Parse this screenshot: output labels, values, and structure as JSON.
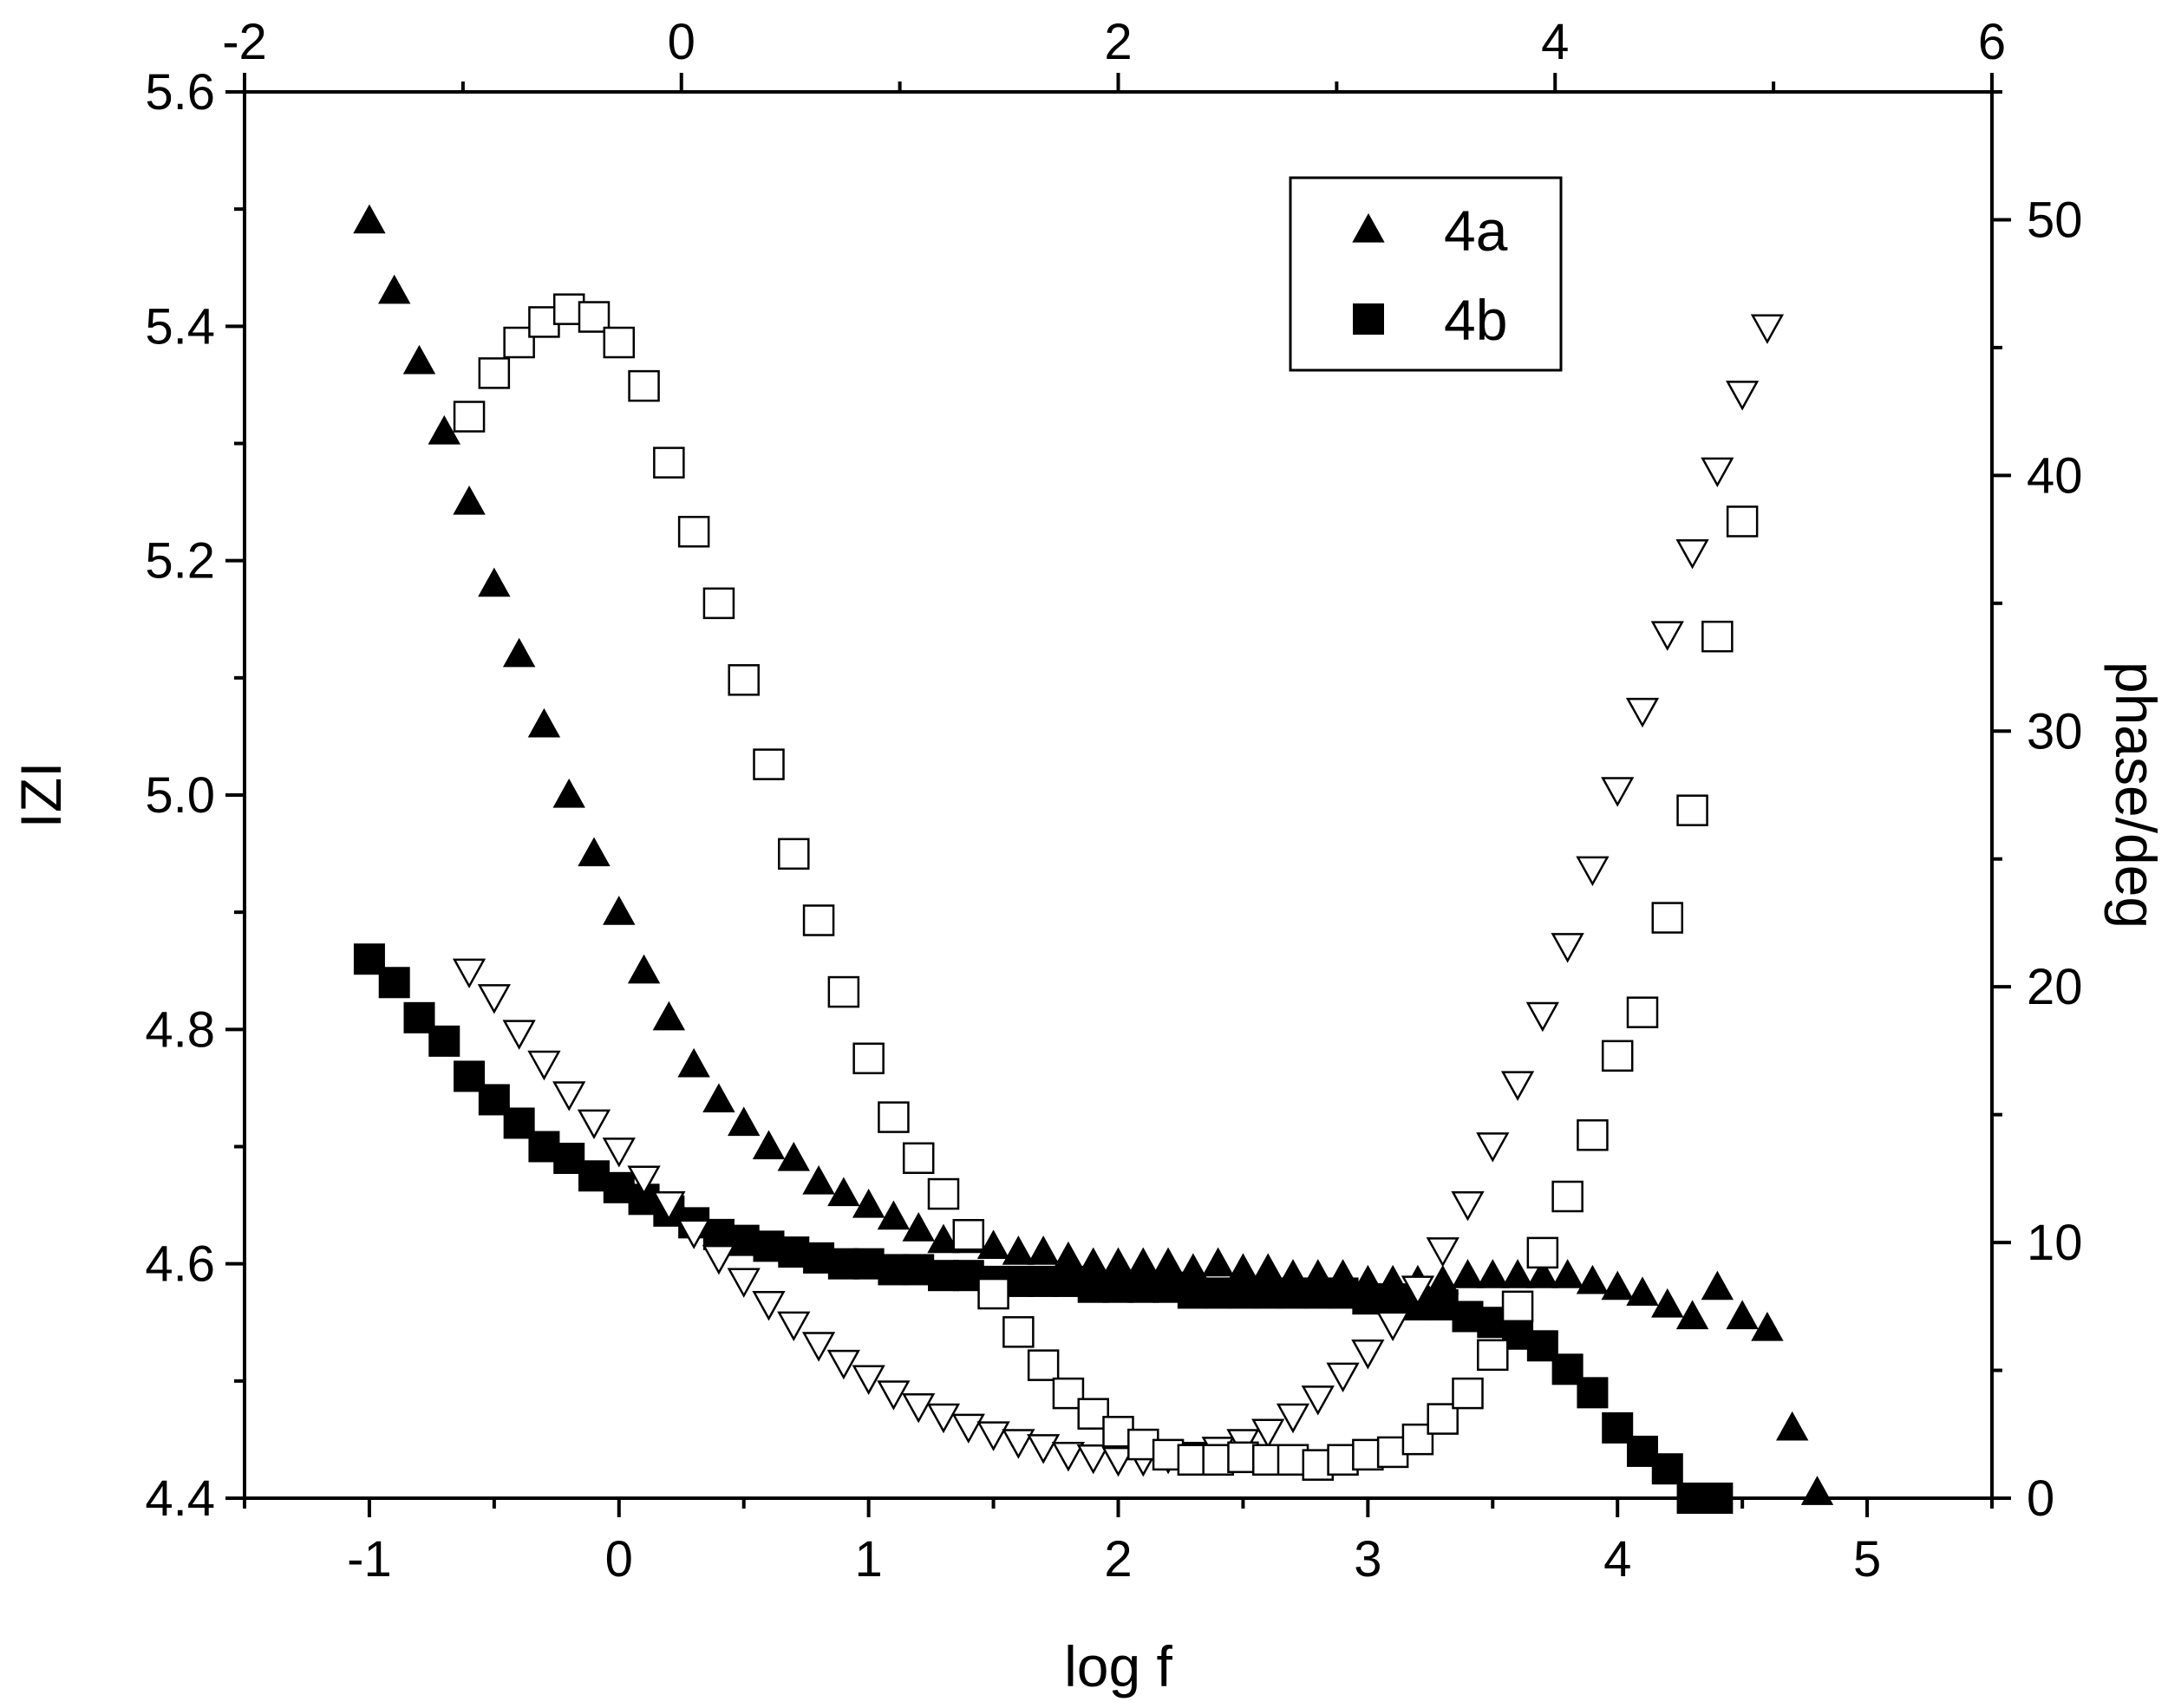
{
  "chart_data": {
    "type": "scatter",
    "title": "",
    "xlabel": "log f",
    "ylabel": "IZI",
    "y2label": "phase/deg",
    "xlim": [
      -1.5,
      5.5
    ],
    "ylim": [
      4.4,
      5.6
    ],
    "x2lim": [
      -2,
      6
    ],
    "y2lim": [
      0,
      55
    ],
    "x_ticks": [
      "-1",
      "0",
      "1",
      "2",
      "3",
      "4",
      "5"
    ],
    "y_ticks": [
      "4.4",
      "4.6",
      "4.8",
      "5.0",
      "5.2",
      "5.4",
      "5.6"
    ],
    "x2_ticks": [
      "-2",
      "0",
      "2",
      "4",
      "6"
    ],
    "y2_ticks": [
      "0",
      "10",
      "20",
      "30",
      "40",
      "50"
    ],
    "grid": false,
    "legend": {
      "position": "top-right",
      "entries": [
        {
          "label": "4a",
          "marker": "triangle-up-filled"
        },
        {
          "label": "4b",
          "marker": "square-filled"
        }
      ]
    },
    "series": [
      {
        "name": "4a",
        "axis": "left",
        "marker": "triangle-up-filled",
        "x": [
          -1.0,
          -0.9,
          -0.8,
          -0.7,
          -0.6,
          -0.5,
          -0.4,
          -0.3,
          -0.2,
          -0.1,
          0.0,
          0.1,
          0.2,
          0.3,
          0.4,
          0.5,
          0.6,
          0.7,
          0.8,
          0.9,
          1.0,
          1.1,
          1.2,
          1.3,
          1.4,
          1.5,
          1.6,
          1.7,
          1.8,
          1.9,
          2.0,
          2.1,
          2.2,
          2.3,
          2.4,
          2.5,
          2.6,
          2.7,
          2.8,
          2.9,
          3.0,
          3.1,
          3.2,
          3.3,
          3.4,
          3.5,
          3.6,
          3.7,
          3.8,
          3.9,
          4.0,
          4.1,
          4.2,
          4.3,
          4.4,
          4.5,
          4.6,
          4.7,
          4.8
        ],
        "y": [
          5.49,
          5.43,
          5.37,
          5.31,
          5.25,
          5.18,
          5.12,
          5.06,
          5.0,
          4.95,
          4.9,
          4.85,
          4.81,
          4.77,
          4.74,
          4.72,
          4.7,
          4.69,
          4.67,
          4.66,
          4.65,
          4.64,
          4.63,
          4.62,
          4.62,
          4.615,
          4.61,
          4.61,
          4.605,
          4.6,
          4.6,
          4.6,
          4.6,
          4.595,
          4.6,
          4.595,
          4.595,
          4.59,
          4.59,
          4.59,
          4.585,
          4.585,
          4.585,
          4.585,
          4.59,
          4.59,
          4.59,
          4.59,
          4.59,
          4.585,
          4.58,
          4.575,
          4.565,
          4.555,
          4.58,
          4.555,
          4.545,
          4.46,
          4.405
        ]
      },
      {
        "name": "4b",
        "axis": "left",
        "marker": "square-filled",
        "x": [
          -1.0,
          -0.9,
          -0.8,
          -0.7,
          -0.6,
          -0.5,
          -0.4,
          -0.3,
          -0.2,
          -0.1,
          0.0,
          0.1,
          0.2,
          0.3,
          0.4,
          0.5,
          0.6,
          0.7,
          0.8,
          0.9,
          1.0,
          1.1,
          1.2,
          1.3,
          1.4,
          1.5,
          1.6,
          1.7,
          1.8,
          1.9,
          2.0,
          2.1,
          2.2,
          2.3,
          2.4,
          2.5,
          2.6,
          2.7,
          2.8,
          2.9,
          3.0,
          3.1,
          3.2,
          3.3,
          3.4,
          3.5,
          3.6,
          3.7,
          3.8,
          3.9,
          4.0,
          4.1,
          4.2,
          4.3,
          4.4
        ],
        "y": [
          4.86,
          4.84,
          4.81,
          4.79,
          4.76,
          4.74,
          4.72,
          4.7,
          4.69,
          4.675,
          4.665,
          4.655,
          4.645,
          4.635,
          4.625,
          4.62,
          4.615,
          4.61,
          4.605,
          4.6,
          4.6,
          4.595,
          4.595,
          4.59,
          4.59,
          4.585,
          4.585,
          4.585,
          4.585,
          4.58,
          4.58,
          4.58,
          4.58,
          4.575,
          4.575,
          4.575,
          4.575,
          4.575,
          4.575,
          4.575,
          4.57,
          4.57,
          4.565,
          4.565,
          4.555,
          4.55,
          4.54,
          4.53,
          4.51,
          4.49,
          4.46,
          4.44,
          4.425,
          4.4,
          4.4
        ]
      },
      {
        "name": "4a",
        "axis": "right",
        "marker": "triangle-down-open",
        "x": [
          -0.6,
          -0.5,
          -0.4,
          -0.3,
          -0.2,
          -0.1,
          0.0,
          0.1,
          0.2,
          0.3,
          0.4,
          0.5,
          0.6,
          0.7,
          0.8,
          0.9,
          1.0,
          1.1,
          1.2,
          1.3,
          1.4,
          1.5,
          1.6,
          1.7,
          1.8,
          1.9,
          2.0,
          2.1,
          2.2,
          2.3,
          2.4,
          2.5,
          2.6,
          2.7,
          2.8,
          2.9,
          3.0,
          3.1,
          3.2,
          3.3,
          3.4,
          3.5,
          3.6,
          3.7,
          3.8,
          3.9,
          4.0,
          4.1,
          4.2,
          4.3,
          4.4,
          4.5,
          4.6
        ],
        "y": [
          20.6,
          19.6,
          18.2,
          17.0,
          15.8,
          14.7,
          13.6,
          12.5,
          11.5,
          10.4,
          9.4,
          8.5,
          7.6,
          6.8,
          6.0,
          5.3,
          4.7,
          4.1,
          3.6,
          3.2,
          2.8,
          2.5,
          2.2,
          2.0,
          1.7,
          1.6,
          1.5,
          1.5,
          1.6,
          1.7,
          1.9,
          2.2,
          2.6,
          3.2,
          3.9,
          4.8,
          5.7,
          6.8,
          8.2,
          9.7,
          11.5,
          13.8,
          16.2,
          18.9,
          21.6,
          24.6,
          27.7,
          30.8,
          33.8,
          37.0,
          40.2,
          43.2,
          45.8
        ]
      },
      {
        "name": "4b",
        "axis": "right",
        "marker": "square-open",
        "x": [
          -0.6,
          -0.5,
          -0.4,
          -0.3,
          -0.2,
          -0.1,
          0.0,
          0.1,
          0.2,
          0.3,
          0.4,
          0.5,
          0.6,
          0.7,
          0.8,
          0.9,
          1.0,
          1.1,
          1.2,
          1.3,
          1.4,
          1.5,
          1.6,
          1.7,
          1.8,
          1.9,
          2.0,
          2.1,
          2.2,
          2.3,
          2.4,
          2.5,
          2.6,
          2.7,
          2.8,
          2.9,
          3.0,
          3.1,
          3.2,
          3.3,
          3.4,
          3.5,
          3.6,
          3.7,
          3.8,
          3.9,
          4.0,
          4.1,
          4.2,
          4.3,
          4.4,
          4.5
        ],
        "y": [
          42.3,
          44.0,
          45.2,
          46.0,
          46.5,
          46.2,
          45.2,
          43.5,
          40.5,
          37.8,
          35.0,
          32.0,
          28.7,
          25.2,
          22.6,
          19.8,
          17.2,
          14.9,
          13.3,
          11.9,
          10.3,
          8.0,
          6.5,
          5.2,
          4.1,
          3.3,
          2.6,
          2.1,
          1.7,
          1.5,
          1.5,
          1.6,
          1.5,
          1.5,
          1.3,
          1.5,
          1.7,
          1.8,
          2.3,
          3.1,
          4.1,
          5.6,
          7.5,
          9.6,
          11.8,
          14.2,
          17.3,
          19.0,
          22.7,
          26.9,
          33.7,
          38.2
        ]
      }
    ]
  }
}
